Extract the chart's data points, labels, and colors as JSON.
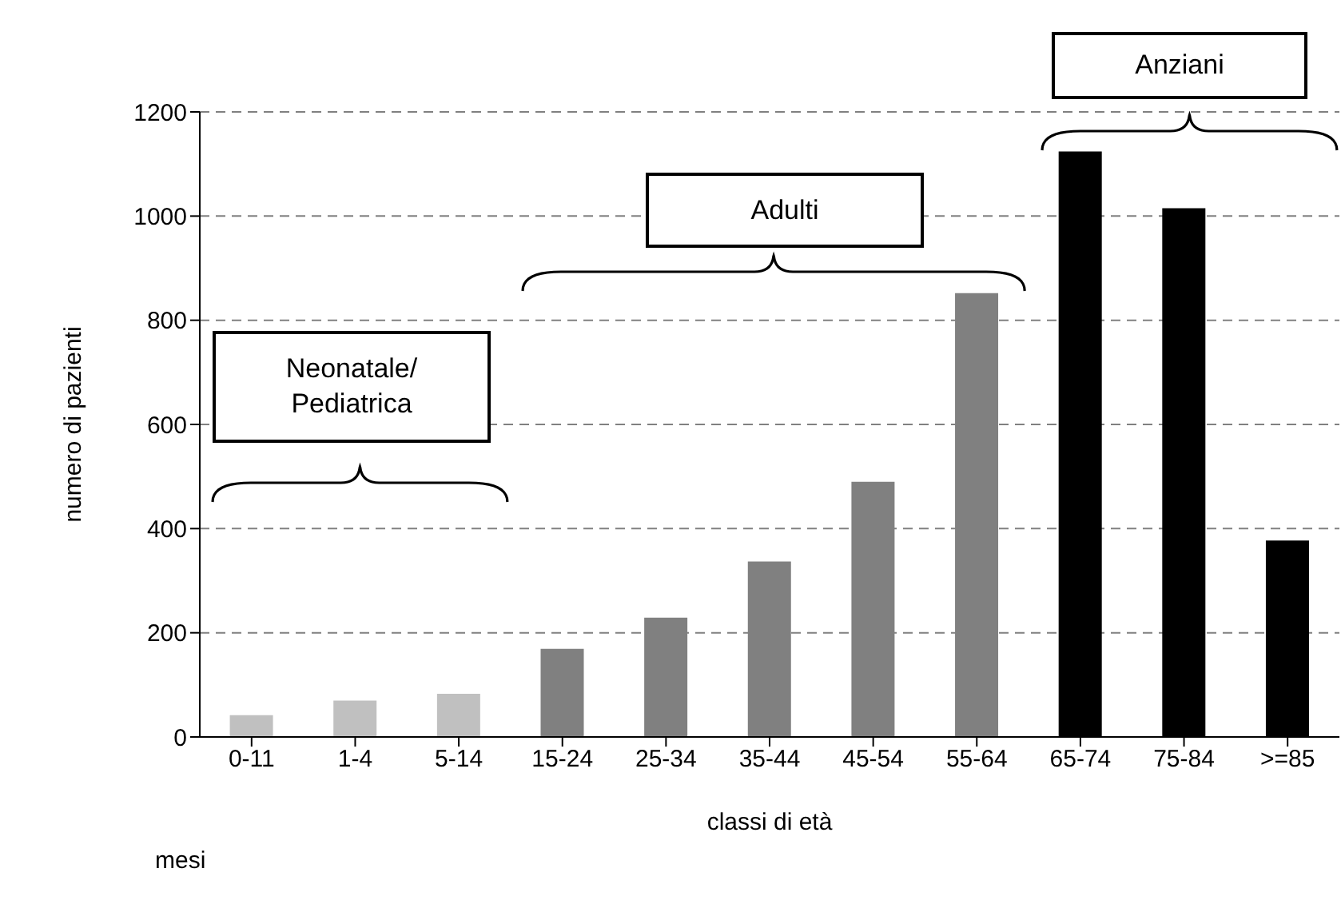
{
  "chart_data": {
    "type": "bar",
    "xlabel": "classi di età",
    "ylabel": "numero di pazienti",
    "categories": [
      "0-11",
      "1-4",
      "5-14",
      "15-24",
      "25-34",
      "35-44",
      "45-54",
      "55-64",
      "65-74",
      "75-84",
      ">=85"
    ],
    "values": [
      42,
      70,
      83,
      169,
      229,
      337,
      490,
      852,
      1124,
      1015,
      377
    ],
    "colors": [
      "#c0c0c0",
      "#c0c0c0",
      "#c0c0c0",
      "#808080",
      "#808080",
      "#808080",
      "#808080",
      "#808080",
      "#000000",
      "#000000",
      "#000000"
    ],
    "ylim": [
      0,
      1200
    ],
    "yticks": [
      0,
      200,
      400,
      600,
      800,
      1000,
      1200
    ],
    "grid": "y",
    "legend": false,
    "annotations": [
      "Neonatale/\nPediatrica",
      "Adulti",
      "Anziani",
      "mesi"
    ]
  }
}
